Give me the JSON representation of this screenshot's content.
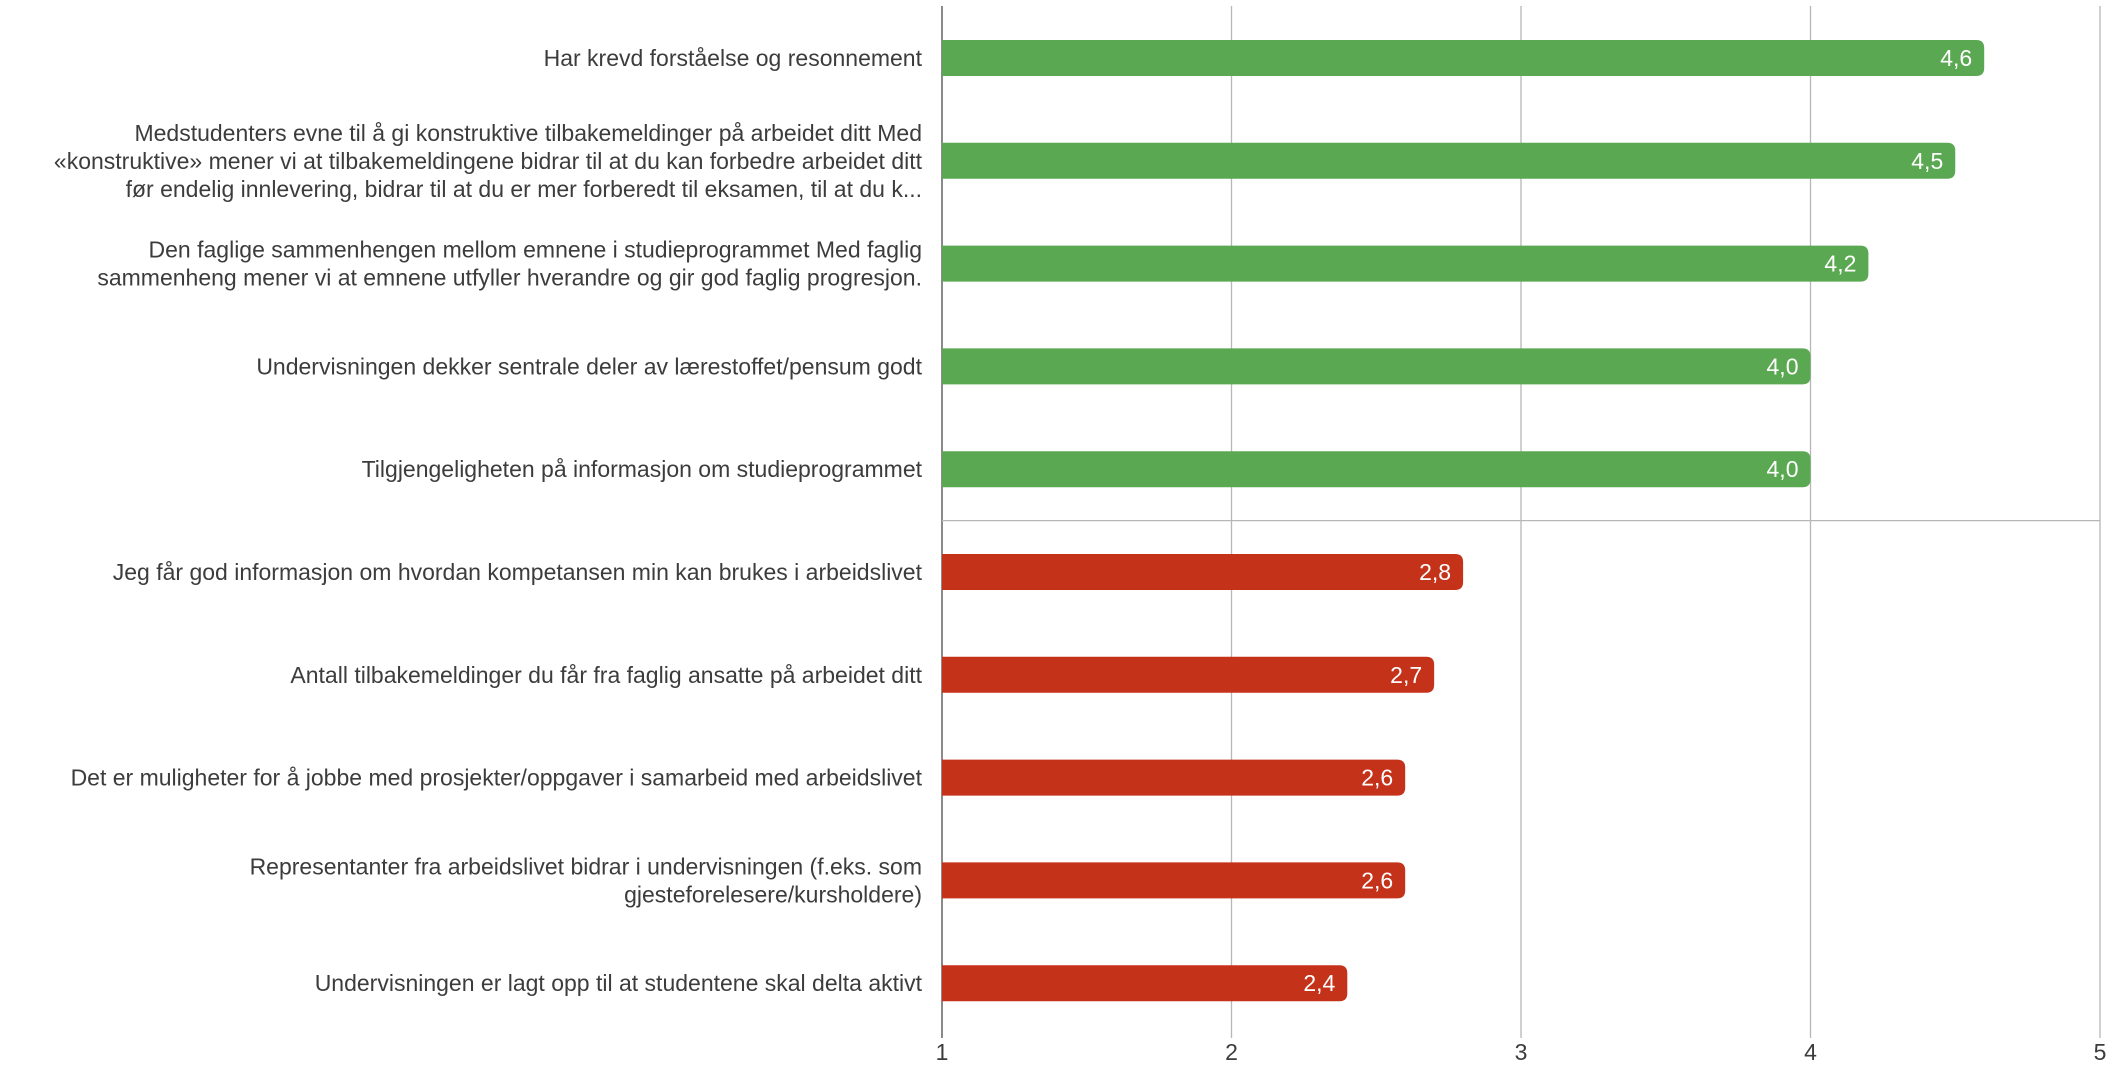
{
  "chart_data": {
    "type": "bar",
    "orientation": "horizontal",
    "categories": [
      [
        "Har krevd forståelse og resonnement"
      ],
      [
        "Medstudenters evne til å gi konstruktive tilbakemeldinger på arbeidet ditt   Med",
        "«konstruktive» mener vi at tilbakemeldingene bidrar til at du kan forbedre arbeidet ditt",
        "før endelig innlevering, bidrar til at du er mer forberedt til eksamen, til at du k..."
      ],
      [
        "Den faglige sammenhengen mellom emnene i studieprogrammet  Med faglig",
        "sammenheng mener vi at emnene utfyller hverandre og gir god faglig progresjon."
      ],
      [
        "Undervisningen dekker sentrale deler av lærestoffet/pensum godt"
      ],
      [
        "Tilgjengeligheten på informasjon om studieprogrammet"
      ],
      [
        "Jeg får god informasjon om hvordan kompetansen min kan brukes i arbeidslivet"
      ],
      [
        "Antall tilbakemeldinger du får fra faglig ansatte på arbeidet ditt"
      ],
      [
        "Det er muligheter for å jobbe med prosjekter/oppgaver i samarbeid med arbeidslivet"
      ],
      [
        "Representanter fra arbeidslivet bidrar i undervisningen (f.eks. som",
        "gjesteforelesere/kursholdere)"
      ],
      [
        "Undervisningen er lagt opp til at studentene skal delta aktivt"
      ]
    ],
    "values": [
      4.6,
      4.5,
      4.2,
      4.0,
      4.0,
      2.8,
      2.7,
      2.6,
      2.6,
      2.4
    ],
    "value_labels": [
      "4,6",
      "4,5",
      "4,2",
      "4,0",
      "4,0",
      "2,8",
      "2,7",
      "2,6",
      "2,6",
      "2,4"
    ],
    "bar_colors": [
      "#5ba852",
      "#5ba852",
      "#5ba852",
      "#5ba852",
      "#5ba852",
      "#c5321a",
      "#c5321a",
      "#c5321a",
      "#c5321a",
      "#c5321a"
    ],
    "group_separator_after_index": 4,
    "xlim": [
      1,
      5
    ],
    "x_ticks": [
      1,
      2,
      3,
      4,
      5
    ],
    "x_tick_labels": [
      "1",
      "2",
      "3",
      "4",
      "5"
    ],
    "grid": true,
    "title": "",
    "xlabel": "",
    "ylabel": ""
  }
}
